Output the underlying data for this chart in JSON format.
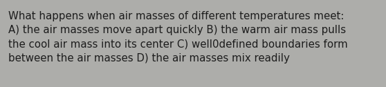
{
  "text": "What happens when air masses of different temperatures meet:\nA) the air masses move apart quickly B) the warm air mass pulls\nthe cool air mass into its center C) well0defined boundaries form\nbetween the air masses D) the air masses mix readily",
  "background_color": "#adadaa",
  "text_color": "#1c1c1c",
  "font_size": 10.8,
  "fig_width": 5.58,
  "fig_height": 1.26,
  "dpi": 100
}
